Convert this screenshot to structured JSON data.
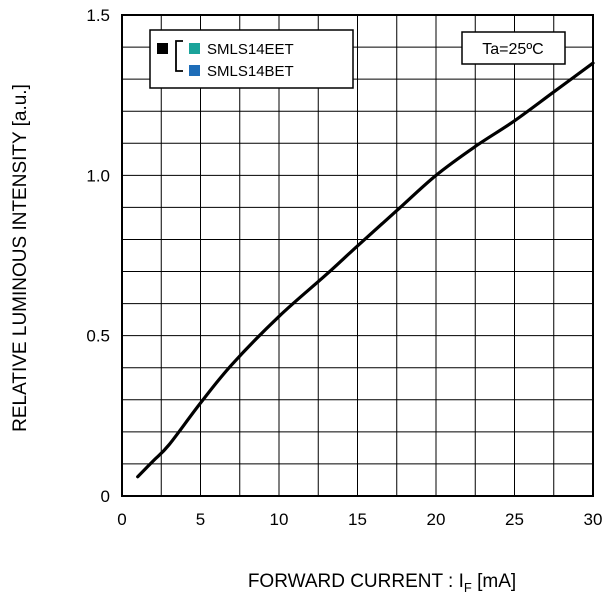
{
  "chart_data": {
    "type": "line",
    "title": "",
    "xlabel": "FORWARD CURRENT : I",
    "xlabel_sub": "F",
    "xlabel_unit": " [mA]",
    "ylabel": "RELATIVE LUMINOUS INTENSITY [a.u.]",
    "xlim": [
      0,
      30
    ],
    "ylim": [
      0,
      1.5
    ],
    "x_ticks": [
      0,
      5,
      10,
      15,
      20,
      25,
      30
    ],
    "x_tick_labels": [
      "0",
      "5",
      "10",
      "15",
      "20",
      "25",
      "30"
    ],
    "y_ticks": [
      0,
      0.5,
      1.0,
      1.5
    ],
    "y_tick_labels": [
      "0",
      "0.5",
      "1.0",
      "1.5"
    ],
    "grid": true,
    "legend": {
      "placement": "top-left",
      "group_marker_color": "#000000",
      "entries": [
        {
          "name": "SMLS14EET",
          "color": "#1aa39a"
        },
        {
          "name": "SMLS14BET",
          "color": "#1e6db8"
        }
      ]
    },
    "condition_label": "Ta=25ºC",
    "series": [
      {
        "name": "SMLS14EET / SMLS14BET",
        "color": "#000000",
        "x": [
          1,
          2,
          3,
          5,
          7,
          10,
          13,
          15,
          17.5,
          20,
          22.5,
          25,
          27.5,
          30
        ],
        "y": [
          0.06,
          0.11,
          0.16,
          0.29,
          0.41,
          0.56,
          0.69,
          0.78,
          0.89,
          1.0,
          1.09,
          1.17,
          1.26,
          1.35
        ]
      }
    ]
  }
}
